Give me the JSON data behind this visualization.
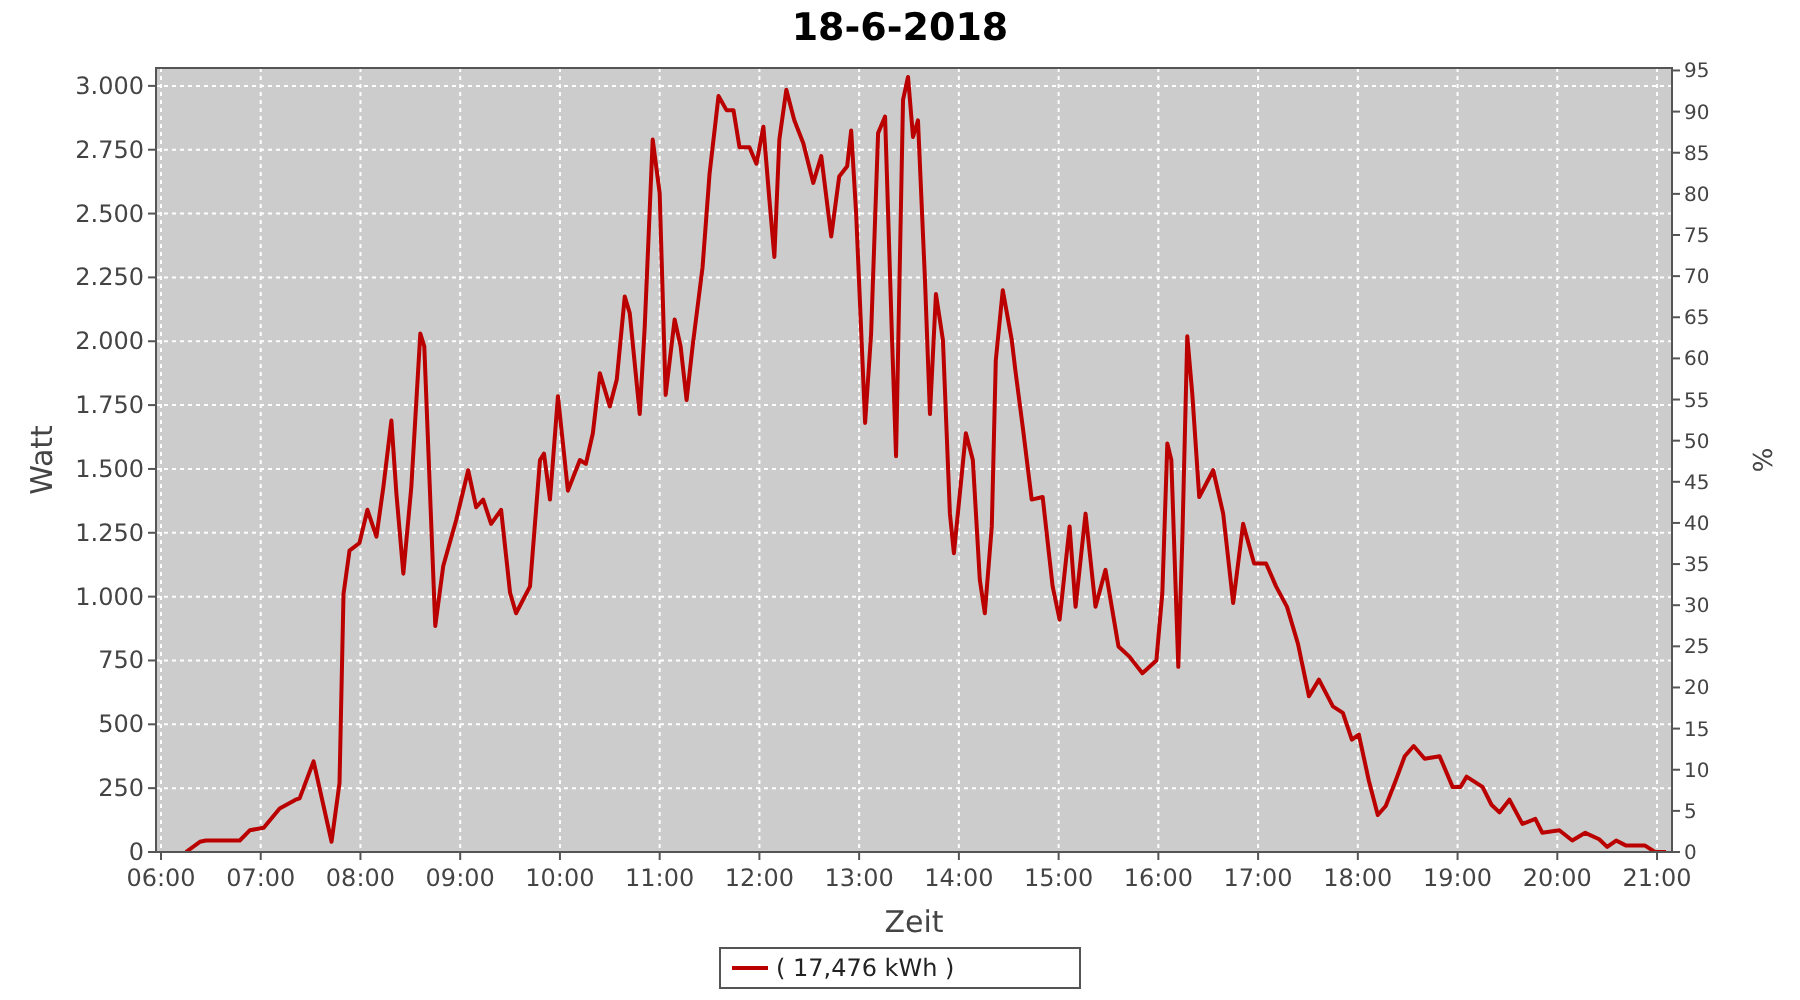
{
  "chart_data": {
    "type": "line",
    "title": "18-6-2018",
    "xlabel": "Zeit",
    "ylabel": "Watt",
    "y2label": "%",
    "legend": "bottom",
    "grid": true,
    "xlim": [
      5.95,
      21.15
    ],
    "ylim": [
      0,
      3070
    ],
    "y2lim": [
      0,
      95.3
    ],
    "xticks": [
      {
        "value": 6,
        "label": "06:00"
      },
      {
        "value": 7,
        "label": "07:00"
      },
      {
        "value": 8,
        "label": "08:00"
      },
      {
        "value": 9,
        "label": "09:00"
      },
      {
        "value": 10,
        "label": "10:00"
      },
      {
        "value": 11,
        "label": "11:00"
      },
      {
        "value": 12,
        "label": "12:00"
      },
      {
        "value": 13,
        "label": "13:00"
      },
      {
        "value": 14,
        "label": "14:00"
      },
      {
        "value": 15,
        "label": "15:00"
      },
      {
        "value": 16,
        "label": "16:00"
      },
      {
        "value": 17,
        "label": "17:00"
      },
      {
        "value": 18,
        "label": "18:00"
      },
      {
        "value": 19,
        "label": "19:00"
      },
      {
        "value": 20,
        "label": "20:00"
      },
      {
        "value": 21,
        "label": "21:00"
      }
    ],
    "yticks": [
      0,
      250,
      500,
      750,
      {
        "value": 1000,
        "label": "1.000"
      },
      {
        "value": 1250,
        "label": "1.250"
      },
      {
        "value": 1500,
        "label": "1.500"
      },
      {
        "value": 1750,
        "label": "1.750"
      },
      {
        "value": 2000,
        "label": "2.000"
      },
      {
        "value": 2250,
        "label": "2.250"
      },
      {
        "value": 2500,
        "label": "2.500"
      },
      {
        "value": 2750,
        "label": "2.750"
      },
      {
        "value": 3000,
        "label": "3.000"
      }
    ],
    "y2ticks": [
      0,
      5,
      10,
      15,
      20,
      25,
      30,
      35,
      40,
      45,
      50,
      55,
      60,
      65,
      70,
      75,
      80,
      85,
      90,
      95
    ],
    "series": [
      {
        "name": "( 17,476 kWh )",
        "color": "#bb0000",
        "line_style": "solid",
        "x": [
          6.25,
          6.39,
          6.45,
          6.79,
          6.89,
          7.03,
          7.19,
          7.35,
          7.39,
          7.53,
          7.71,
          7.79,
          7.83,
          7.89,
          7.99,
          8.07,
          8.16,
          8.23,
          8.31,
          8.36,
          8.43,
          8.51,
          8.6,
          8.64,
          8.7,
          8.75,
          8.83,
          8.96,
          9.08,
          9.16,
          9.23,
          9.31,
          9.41,
          9.5,
          9.56,
          9.7,
          9.8,
          9.84,
          9.9,
          9.98,
          10.08,
          10.2,
          10.26,
          10.33,
          10.4,
          10.5,
          10.57,
          10.65,
          10.7,
          10.8,
          10.85,
          10.89,
          10.93,
          11.0,
          11.06,
          11.15,
          11.21,
          11.27,
          11.33,
          11.43,
          11.5,
          11.59,
          11.67,
          11.74,
          11.8,
          11.9,
          11.97,
          12.04,
          12.1,
          12.15,
          12.2,
          12.27,
          12.35,
          12.44,
          12.54,
          12.62,
          12.72,
          12.8,
          12.88,
          12.92,
          12.97,
          13.06,
          13.12,
          13.19,
          13.26,
          13.33,
          13.37,
          13.44,
          13.49,
          13.54,
          13.59,
          13.66,
          13.71,
          13.77,
          13.84,
          13.91,
          13.95,
          14.07,
          14.14,
          14.21,
          14.26,
          14.33,
          14.37,
          14.44,
          14.53,
          14.57,
          14.64,
          14.73,
          14.84,
          14.94,
          15.01,
          15.11,
          15.17,
          15.27,
          15.37,
          15.47,
          15.6,
          15.71,
          15.84,
          15.98,
          16.04,
          16.09,
          16.13,
          16.2,
          16.24,
          16.29,
          16.34,
          16.41,
          16.55,
          16.65,
          16.75,
          16.85,
          16.96,
          17.08,
          17.18,
          17.29,
          17.4,
          17.51,
          17.61,
          17.75,
          17.85,
          17.94,
          18.01,
          18.11,
          18.2,
          18.28,
          18.38,
          18.47,
          18.56,
          18.67,
          18.82,
          18.95,
          19.03,
          19.09,
          19.25,
          19.34,
          19.42,
          19.52,
          19.65,
          19.78,
          19.85,
          20.02,
          20.15,
          20.28,
          20.42,
          20.5,
          20.59,
          20.69,
          20.88,
          20.98,
          21.09
        ],
        "values": [
          0,
          40,
          45,
          45,
          85,
          95,
          170,
          205,
          210,
          355,
          40,
          270,
          1010,
          1180,
          1210,
          1340,
          1235,
          1430,
          1690,
          1405,
          1090,
          1430,
          2030,
          1980,
          1380,
          885,
          1120,
          1300,
          1495,
          1350,
          1380,
          1285,
          1340,
          1015,
          935,
          1040,
          1535,
          1560,
          1380,
          1785,
          1415,
          1535,
          1520,
          1640,
          1875,
          1745,
          1850,
          2175,
          2110,
          1715,
          2055,
          2420,
          2790,
          2580,
          1790,
          2085,
          1980,
          1770,
          1980,
          2290,
          2655,
          2960,
          2905,
          2905,
          2760,
          2760,
          2695,
          2840,
          2555,
          2330,
          2790,
          2985,
          2865,
          2775,
          2620,
          2725,
          2410,
          2645,
          2685,
          2825,
          2500,
          1680,
          2030,
          2815,
          2880,
          2005,
          1550,
          2945,
          3035,
          2800,
          2865,
          2240,
          1715,
          2185,
          2005,
          1325,
          1170,
          1640,
          1535,
          1065,
          935,
          1275,
          1925,
          2200,
          2005,
          1875,
          1665,
          1380,
          1390,
          1040,
          910,
          1275,
          960,
          1325,
          960,
          1105,
          805,
          765,
          700,
          750,
          1015,
          1600,
          1535,
          725,
          1220,
          2020,
          1795,
          1390,
          1495,
          1325,
          975,
          1285,
          1130,
          1130,
          1040,
          960,
          815,
          610,
          675,
          570,
          545,
          440,
          460,
          280,
          145,
          180,
          280,
          375,
          415,
          365,
          375,
          255,
          255,
          295,
          255,
          185,
          155,
          205,
          110,
          130,
          75,
          85,
          45,
          75,
          50,
          20,
          45,
          25,
          25,
          0,
          0
        ]
      }
    ]
  }
}
